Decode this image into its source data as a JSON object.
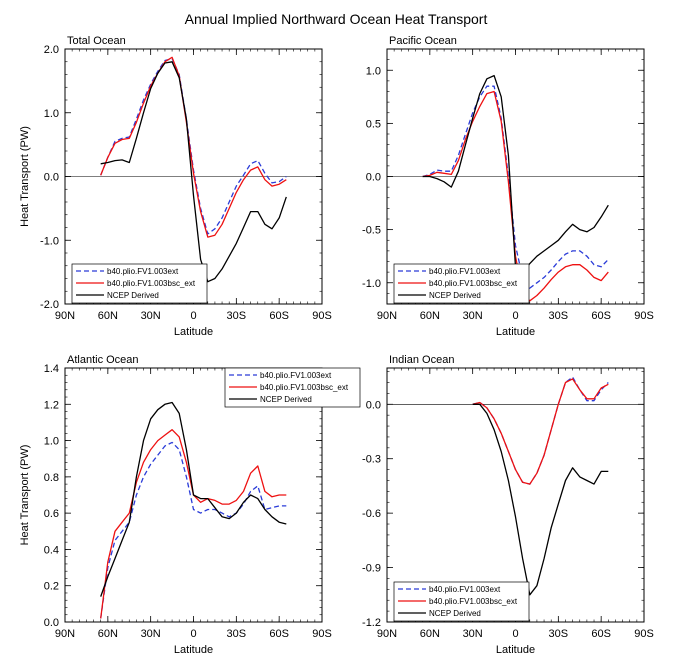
{
  "title": "Annual Implied Northward Ocean Heat Transport",
  "colors": {
    "b40_ext": "#2a3bd8",
    "b40_bsc": "#ee1111",
    "ncep": "#000000"
  },
  "chart_data": [
    {
      "type": "line",
      "title": "Total Ocean",
      "xlabel": "Latitude",
      "ylabel": "Heat Transport (PW)",
      "xlim": [
        90,
        -90
      ],
      "ylim": [
        -2,
        2
      ],
      "xticks": [
        90,
        60,
        30,
        0,
        -30,
        -60,
        -90
      ],
      "xtick_labels": [
        "90N",
        "60N",
        "30N",
        "0",
        "30S",
        "60S",
        "90S"
      ],
      "yticks": [
        -2,
        -1,
        0,
        1,
        2
      ],
      "ytick_labels": [
        "-2.0",
        "-1.0",
        "0.0",
        "1.0",
        "2.0"
      ],
      "zero_line": true,
      "legend_position": "bottom-left",
      "series": [
        {
          "name": "b40.plio.FV1.003ext",
          "style": "dashed",
          "x": [
            65,
            60,
            55,
            50,
            45,
            40,
            35,
            30,
            25,
            20,
            15,
            10,
            5,
            0,
            -5,
            -10,
            -15,
            -20,
            -25,
            -30,
            -35,
            -40,
            -45,
            -50,
            -55,
            -60,
            -65
          ],
          "y": [
            0.02,
            0.3,
            0.55,
            0.6,
            0.62,
            0.9,
            1.2,
            1.45,
            1.65,
            1.82,
            1.85,
            1.6,
            0.9,
            0.1,
            -0.5,
            -0.9,
            -0.82,
            -0.65,
            -0.4,
            -0.15,
            0.02,
            0.2,
            0.25,
            0.05,
            -0.1,
            -0.08,
            0.0
          ]
        },
        {
          "name": "b40.plio.FV1.003bsc_ext",
          "style": "solid",
          "x": [
            65,
            60,
            55,
            50,
            45,
            40,
            35,
            30,
            25,
            20,
            15,
            10,
            5,
            0,
            -5,
            -10,
            -15,
            -20,
            -25,
            -30,
            -35,
            -40,
            -45,
            -50,
            -55,
            -60,
            -65
          ],
          "y": [
            0.02,
            0.3,
            0.52,
            0.58,
            0.6,
            0.85,
            1.15,
            1.42,
            1.62,
            1.8,
            1.87,
            1.58,
            0.85,
            0.05,
            -0.55,
            -0.95,
            -0.92,
            -0.75,
            -0.5,
            -0.25,
            -0.05,
            0.1,
            0.15,
            -0.05,
            -0.15,
            -0.12,
            -0.05
          ]
        },
        {
          "name": "NCEP Derived",
          "style": "solid",
          "x": [
            65,
            60,
            55,
            50,
            45,
            40,
            35,
            30,
            25,
            20,
            15,
            10,
            5,
            0,
            -5,
            -10,
            -15,
            -20,
            -25,
            -30,
            -35,
            -40,
            -45,
            -50,
            -55,
            -60,
            -65
          ],
          "y": [
            0.2,
            0.22,
            0.25,
            0.26,
            0.22,
            0.6,
            1.0,
            1.38,
            1.62,
            1.78,
            1.8,
            1.55,
            0.9,
            -0.3,
            -1.3,
            -1.65,
            -1.6,
            -1.45,
            -1.25,
            -1.05,
            -0.8,
            -0.55,
            -0.55,
            -0.75,
            -0.82,
            -0.65,
            -0.32
          ]
        }
      ]
    },
    {
      "type": "line",
      "title": "Pacific Ocean",
      "xlabel": "Latitude",
      "ylabel": "",
      "xlim": [
        90,
        -90
      ],
      "ylim": [
        -1.2,
        1.2
      ],
      "xticks": [
        90,
        60,
        30,
        0,
        -30,
        -60,
        -90
      ],
      "xtick_labels": [
        "90N",
        "60N",
        "30N",
        "0",
        "30S",
        "60S",
        "90S"
      ],
      "yticks": [
        -1.0,
        -0.5,
        0,
        0.5,
        1.0
      ],
      "ytick_labels": [
        "-1.0",
        "-0.5",
        "0.0",
        "0.5",
        "1.0"
      ],
      "zero_line": true,
      "legend_position": "bottom-left",
      "series": [
        {
          "name": "b40.plio.FV1.003ext",
          "style": "dashed",
          "x": [
            65,
            60,
            55,
            50,
            45,
            40,
            35,
            30,
            25,
            20,
            15,
            10,
            5,
            0,
            -5,
            -10,
            -15,
            -20,
            -25,
            -30,
            -35,
            -40,
            -45,
            -50,
            -55,
            -60,
            -65
          ],
          "y": [
            0.0,
            0.02,
            0.06,
            0.05,
            0.05,
            0.2,
            0.4,
            0.6,
            0.75,
            0.85,
            0.85,
            0.55,
            0.0,
            -0.65,
            -0.95,
            -1.05,
            -1.0,
            -0.95,
            -0.88,
            -0.8,
            -0.73,
            -0.7,
            -0.7,
            -0.75,
            -0.83,
            -0.85,
            -0.78
          ]
        },
        {
          "name": "b40.plio.FV1.003bsc_ext",
          "style": "solid",
          "x": [
            65,
            60,
            55,
            50,
            45,
            40,
            35,
            30,
            25,
            20,
            15,
            10,
            5,
            0,
            -5,
            -10,
            -15,
            -20,
            -25,
            -30,
            -35,
            -40,
            -45,
            -50,
            -55,
            -60,
            -65
          ],
          "y": [
            0.0,
            0.01,
            0.04,
            0.03,
            0.02,
            0.15,
            0.35,
            0.52,
            0.66,
            0.78,
            0.8,
            0.52,
            -0.05,
            -0.75,
            -1.1,
            -1.17,
            -1.12,
            -1.05,
            -0.97,
            -0.9,
            -0.85,
            -0.83,
            -0.83,
            -0.88,
            -0.95,
            -0.98,
            -0.9
          ]
        },
        {
          "name": "NCEP Derived",
          "style": "solid",
          "x": [
            65,
            60,
            55,
            50,
            45,
            40,
            35,
            30,
            25,
            20,
            15,
            10,
            5,
            0,
            -5,
            -10,
            -15,
            -20,
            -25,
            -30,
            -35,
            -40,
            -45,
            -50,
            -55,
            -60,
            -65
          ],
          "y": [
            0.0,
            0.0,
            -0.02,
            -0.05,
            -0.1,
            0.05,
            0.3,
            0.55,
            0.78,
            0.92,
            0.95,
            0.75,
            0.2,
            -0.85,
            -0.9,
            -0.82,
            -0.75,
            -0.7,
            -0.65,
            -0.6,
            -0.52,
            -0.45,
            -0.5,
            -0.52,
            -0.48,
            -0.38,
            -0.27
          ]
        }
      ]
    },
    {
      "type": "line",
      "title": "Atlantic Ocean",
      "xlabel": "Latitude",
      "ylabel": "Heat Transport (PW)",
      "xlim": [
        90,
        -90
      ],
      "ylim": [
        0,
        1.4
      ],
      "xticks": [
        90,
        60,
        30,
        0,
        -30,
        -60,
        -90
      ],
      "xtick_labels": [
        "90N",
        "60N",
        "30N",
        "0",
        "30S",
        "60S",
        "90S"
      ],
      "yticks": [
        0,
        0.2,
        0.4,
        0.6,
        0.8,
        1.0,
        1.2,
        1.4
      ],
      "ytick_labels": [
        "0.0",
        "0.2",
        "0.4",
        "0.6",
        "0.8",
        "1.0",
        "1.2",
        "1.4"
      ],
      "zero_line": false,
      "legend_position": "top-right",
      "series": [
        {
          "name": "b40.plio.FV1.003ext",
          "style": "dashed",
          "x": [
            65,
            60,
            55,
            50,
            45,
            40,
            35,
            30,
            25,
            20,
            15,
            10,
            5,
            0,
            -5,
            -10,
            -15,
            -20,
            -25,
            -30,
            -35,
            -40,
            -45,
            -50,
            -55,
            -60,
            -65
          ],
          "y": [
            0.02,
            0.3,
            0.45,
            0.5,
            0.55,
            0.7,
            0.8,
            0.87,
            0.92,
            0.97,
            0.99,
            0.95,
            0.8,
            0.62,
            0.6,
            0.62,
            0.62,
            0.6,
            0.58,
            0.6,
            0.65,
            0.72,
            0.75,
            0.62,
            0.63,
            0.64,
            0.64
          ]
        },
        {
          "name": "b40.plio.FV1.003bsc_ext",
          "style": "solid",
          "x": [
            65,
            60,
            55,
            50,
            45,
            40,
            35,
            30,
            25,
            20,
            15,
            10,
            5,
            0,
            -5,
            -10,
            -15,
            -20,
            -25,
            -30,
            -35,
            -40,
            -45,
            -50,
            -55,
            -60,
            -65
          ],
          "y": [
            0.02,
            0.33,
            0.5,
            0.55,
            0.6,
            0.77,
            0.88,
            0.95,
            1.0,
            1.03,
            1.06,
            1.02,
            0.88,
            0.7,
            0.66,
            0.68,
            0.67,
            0.65,
            0.65,
            0.67,
            0.72,
            0.82,
            0.86,
            0.72,
            0.69,
            0.7,
            0.7
          ]
        },
        {
          "name": "NCEP Derived",
          "style": "solid",
          "x": [
            65,
            60,
            55,
            50,
            45,
            40,
            35,
            30,
            25,
            20,
            15,
            10,
            5,
            0,
            -5,
            -10,
            -15,
            -20,
            -25,
            -30,
            -35,
            -40,
            -45,
            -50,
            -55,
            -60,
            -65
          ],
          "y": [
            0.14,
            0.25,
            0.35,
            0.45,
            0.55,
            0.8,
            1.0,
            1.12,
            1.17,
            1.2,
            1.21,
            1.15,
            0.95,
            0.7,
            0.68,
            0.68,
            0.63,
            0.58,
            0.57,
            0.6,
            0.66,
            0.7,
            0.68,
            0.62,
            0.58,
            0.55,
            0.54
          ]
        }
      ]
    },
    {
      "type": "line",
      "title": "Indian Ocean",
      "xlabel": "Latitude",
      "ylabel": "",
      "xlim": [
        90,
        -90
      ],
      "ylim": [
        -1.2,
        0.2
      ],
      "xticks": [
        90,
        60,
        30,
        0,
        -30,
        -60,
        -90
      ],
      "xtick_labels": [
        "90N",
        "60N",
        "30N",
        "0",
        "30S",
        "60S",
        "90S"
      ],
      "yticks": [
        -1.2,
        -0.9,
        -0.6,
        -0.3,
        0
      ],
      "ytick_labels": [
        "-1.2",
        "-0.9",
        "-0.6",
        "-0.3",
        "0.0"
      ],
      "zero_line": true,
      "legend_position": "bottom-left",
      "series": [
        {
          "name": "b40.plio.FV1.003ext",
          "style": "dashed",
          "x": [
            30,
            25,
            20,
            15,
            10,
            5,
            0,
            -5,
            -10,
            -15,
            -20,
            -25,
            -30,
            -35,
            -40,
            -45,
            -50,
            -55,
            -60,
            -65
          ],
          "y": [
            0.0,
            0.01,
            -0.02,
            -0.08,
            -0.16,
            -0.26,
            -0.36,
            -0.43,
            -0.44,
            -0.38,
            -0.28,
            -0.14,
            0.0,
            0.12,
            0.15,
            0.08,
            0.02,
            0.02,
            0.08,
            0.12
          ]
        },
        {
          "name": "b40.plio.FV1.003bsc_ext",
          "style": "solid",
          "x": [
            30,
            25,
            20,
            15,
            10,
            5,
            0,
            -5,
            -10,
            -15,
            -20,
            -25,
            -30,
            -35,
            -40,
            -45,
            -50,
            -55,
            -60,
            -65
          ],
          "y": [
            0.0,
            0.01,
            -0.02,
            -0.08,
            -0.16,
            -0.26,
            -0.36,
            -0.43,
            -0.44,
            -0.38,
            -0.28,
            -0.14,
            0.0,
            0.12,
            0.14,
            0.08,
            0.03,
            0.03,
            0.09,
            0.11
          ]
        },
        {
          "name": "NCEP Derived",
          "style": "solid",
          "x": [
            30,
            25,
            20,
            15,
            10,
            5,
            0,
            -5,
            -10,
            -15,
            -20,
            -25,
            -30,
            -35,
            -40,
            -45,
            -50,
            -55,
            -60,
            -65
          ],
          "y": [
            0.0,
            0.0,
            -0.05,
            -0.14,
            -0.26,
            -0.42,
            -0.62,
            -0.85,
            -1.05,
            -1.0,
            -0.85,
            -0.68,
            -0.55,
            -0.42,
            -0.35,
            -0.4,
            -0.42,
            -0.44,
            -0.37,
            -0.37
          ]
        }
      ]
    }
  ]
}
